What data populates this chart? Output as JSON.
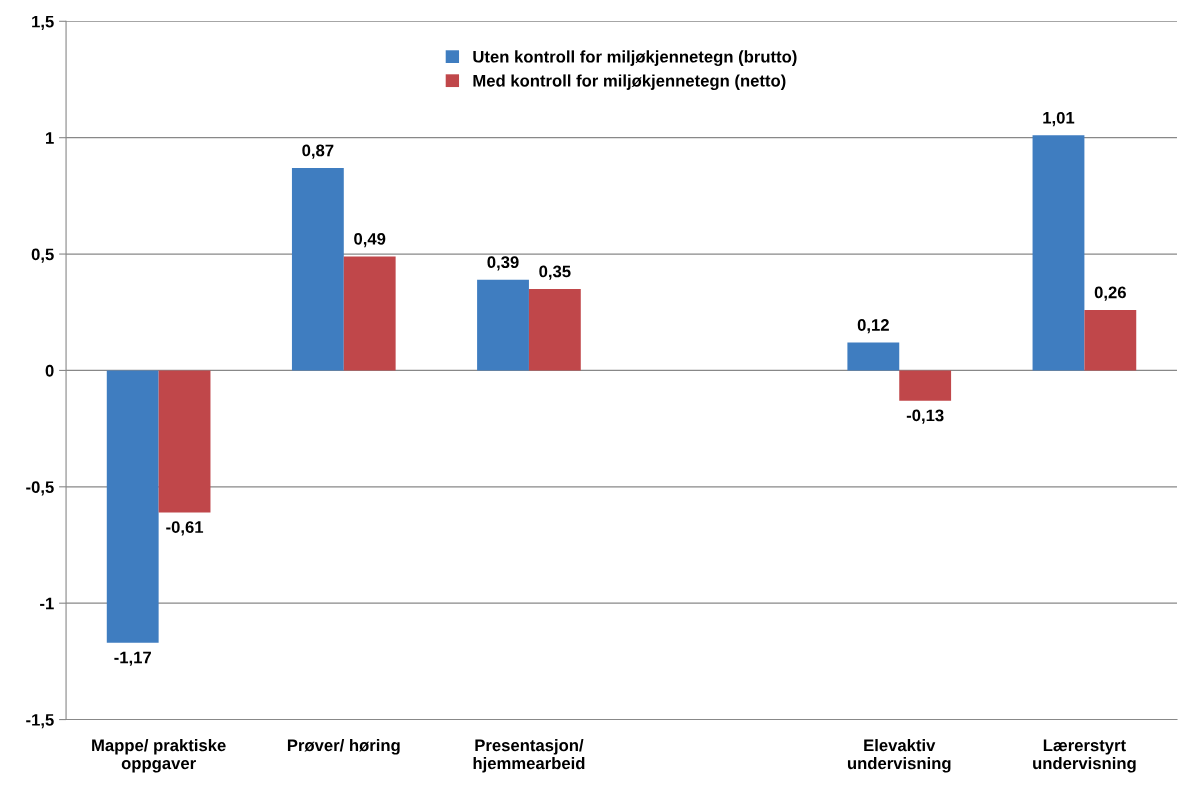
{
  "chart_data": {
    "type": "bar",
    "categories": [
      "Mappe/ praktiske\noppgaver",
      "Prøver/ høring",
      "Presentasjon/\nhjemmearbeid",
      null,
      "Elevaktiv\nundervisning",
      "Lærerstyrt\nundervisning"
    ],
    "series": [
      {
        "name": "Uten kontroll for miljøkjennetegn (brutto)",
        "color": "#3f7dc0",
        "values": [
          -1.17,
          0.87,
          0.39,
          null,
          0.12,
          1.01
        ],
        "value_labels": [
          "-1,17",
          "0,87",
          "0,39",
          null,
          "0,12",
          "1,01"
        ]
      },
      {
        "name": "Med kontroll for miljøkjennetegn (netto)",
        "color": "#c0474a",
        "values": [
          -0.61,
          0.49,
          0.35,
          null,
          -0.13,
          0.26
        ],
        "value_labels": [
          "-0,61",
          "0,49",
          "0,35",
          null,
          "-0,13",
          "0,26"
        ]
      }
    ],
    "ylim": [
      -1.5,
      1.5
    ],
    "yticks": [
      {
        "value": -1.5,
        "label": "-1,5"
      },
      -1,
      {
        "value": -0.5,
        "label": "-0,5"
      },
      0,
      {
        "value": 0.5,
        "label": "0,5"
      },
      1,
      {
        "value": 1.5,
        "label": "1,5"
      }
    ],
    "grid": "y",
    "legend": "top"
  }
}
